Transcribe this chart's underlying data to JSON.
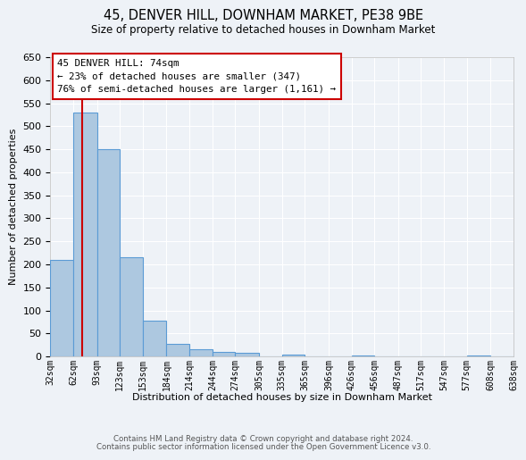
{
  "title": "45, DENVER HILL, DOWNHAM MARKET, PE38 9BE",
  "subtitle": "Size of property relative to detached houses in Downham Market",
  "bar_values": [
    210,
    530,
    450,
    215,
    78,
    27,
    15,
    10,
    8,
    0,
    5,
    0,
    0,
    2,
    0,
    0,
    0,
    0,
    2,
    0
  ],
  "bin_left_edges": [
    32,
    62,
    93,
    123,
    153,
    184,
    214,
    244,
    274,
    305,
    335,
    365,
    396,
    426,
    456,
    487,
    517,
    547,
    577,
    608
  ],
  "bin_widths": [
    30,
    31,
    30,
    30,
    31,
    30,
    30,
    30,
    31,
    30,
    30,
    31,
    30,
    30,
    31,
    30,
    30,
    30,
    31,
    30
  ],
  "bin_labels": [
    "32sqm",
    "62sqm",
    "93sqm",
    "123sqm",
    "153sqm",
    "184sqm",
    "214sqm",
    "244sqm",
    "274sqm",
    "305sqm",
    "335sqm",
    "365sqm",
    "396sqm",
    "426sqm",
    "456sqm",
    "487sqm",
    "517sqm",
    "547sqm",
    "577sqm",
    "608sqm",
    "638sqm"
  ],
  "bar_color": "#adc8e0",
  "bar_edge_color": "#5b9bd5",
  "ylabel": "Number of detached properties",
  "xlabel": "Distribution of detached houses by size in Downham Market",
  "ylim": [
    0,
    650
  ],
  "yticks": [
    0,
    50,
    100,
    150,
    200,
    250,
    300,
    350,
    400,
    450,
    500,
    550,
    600,
    650
  ],
  "xlim_left": 32,
  "xlim_right": 638,
  "property_line_x": 74,
  "property_line_color": "#cc0000",
  "annotation_title": "45 DENVER HILL: 74sqm",
  "annotation_line1": "← 23% of detached houses are smaller (347)",
  "annotation_line2": "76% of semi-detached houses are larger (1,161) →",
  "annotation_box_edgecolor": "#cc0000",
  "background_color": "#eef2f7",
  "grid_color": "#ffffff",
  "footnote1": "Contains HM Land Registry data © Crown copyright and database right 2024.",
  "footnote2": "Contains public sector information licensed under the Open Government Licence v3.0."
}
